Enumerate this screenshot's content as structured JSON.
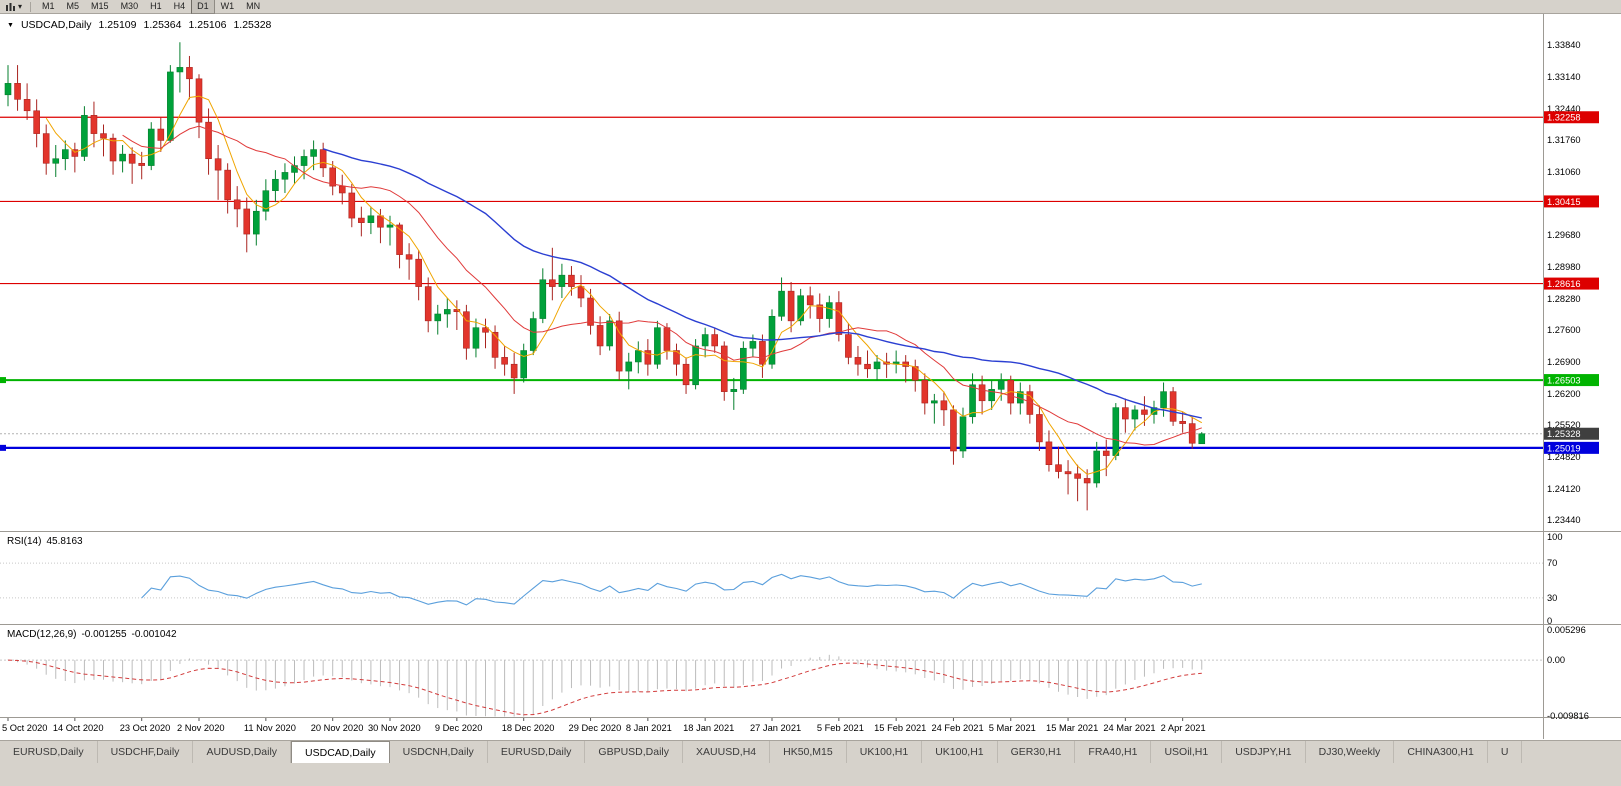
{
  "toolbar": {
    "timeframes": [
      "M1",
      "M5",
      "M15",
      "M30",
      "H1",
      "H4",
      "D1",
      "W1",
      "MN"
    ],
    "active_timeframe": "D1"
  },
  "chart": {
    "title": "USDCAD,Daily",
    "ohlc": {
      "open": "1.25109",
      "high": "1.25364",
      "low": "1.25106",
      "close": "1.25328"
    },
    "price_axis": [
      "1.33840",
      "1.33140",
      "1.32440",
      "1.31760",
      "1.31060",
      "1.30360",
      "1.29680",
      "1.28980",
      "1.28280",
      "1.27600",
      "1.26900",
      "1.26200",
      "1.25520",
      "1.24820",
      "1.24120",
      "1.23440"
    ],
    "levels": [
      {
        "value": 1.32258,
        "label": "1.32258",
        "color": "#dd0000",
        "thickness": 1.2
      },
      {
        "value": 1.30415,
        "label": "1.30415",
        "color": "#dd0000",
        "thickness": 1.2
      },
      {
        "value": 1.28616,
        "label": "1.28616",
        "color": "#dd0000",
        "thickness": 1.2
      },
      {
        "value": 1.26503,
        "label": "1.26503",
        "color": "#00b300",
        "thickness": 2
      },
      {
        "value": 1.25019,
        "label": "1.25019",
        "color": "#0000dd",
        "thickness": 2.2
      }
    ],
    "current_price": {
      "value": 1.25328,
      "label": "1.25328",
      "bg": "#3f3f3f"
    },
    "colors": {
      "bull": "#00a13a",
      "bull_border": "#067f2e",
      "bear": "#e2352c",
      "bear_border": "#a92420",
      "dotted_line": "#b2b2b2"
    }
  },
  "chart_data": {
    "type": "candlestick",
    "symbol": "USDCAD",
    "timeframe": "Daily",
    "x_labels": [
      "5 Oct 2020",
      "14 Oct 2020",
      "23 Oct 2020",
      "2 Nov 2020",
      "11 Nov 2020",
      "20 Nov 2020",
      "30 Nov 2020",
      "9 Dec 2020",
      "18 Dec 2020",
      "29 Dec 2020",
      "8 Jan 2021",
      "18 Jan 2021",
      "27 Jan 2021",
      "5 Feb 2021",
      "15 Feb 2021",
      "24 Feb 2021",
      "5 Mar 2021",
      "15 Mar 2021",
      "24 Mar 2021",
      "2 Apr 2021"
    ],
    "x_label_indices": [
      0,
      7,
      14,
      20,
      27,
      34,
      40,
      47,
      54,
      61,
      67,
      73,
      80,
      87,
      93,
      99,
      105,
      111,
      117,
      123
    ],
    "y_range": [
      1.232,
      1.3452
    ],
    "moving_averages": [
      {
        "period": 5,
        "color": "#f0a500",
        "width": 1
      },
      {
        "period": 13,
        "color": "#e03a3a",
        "width": 1
      },
      {
        "period": 34,
        "color": "#2b3fd2",
        "width": 1.4
      }
    ],
    "ohlc": [
      [
        1.3275,
        1.334,
        1.325,
        1.33
      ],
      [
        1.33,
        1.334,
        1.324,
        1.3265
      ],
      [
        1.3265,
        1.33,
        1.322,
        1.324
      ],
      [
        1.324,
        1.3265,
        1.316,
        1.319
      ],
      [
        1.319,
        1.321,
        1.31,
        1.3125
      ],
      [
        1.3125,
        1.3165,
        1.3095,
        1.3135
      ],
      [
        1.3135,
        1.3175,
        1.311,
        1.3155
      ],
      [
        1.3155,
        1.317,
        1.3105,
        1.314
      ],
      [
        1.314,
        1.325,
        1.313,
        1.323
      ],
      [
        1.323,
        1.326,
        1.316,
        1.319
      ],
      [
        1.319,
        1.321,
        1.314,
        1.318
      ],
      [
        1.318,
        1.319,
        1.31,
        1.313
      ],
      [
        1.313,
        1.3165,
        1.3105,
        1.3145
      ],
      [
        1.3145,
        1.316,
        1.308,
        1.3125
      ],
      [
        1.3125,
        1.315,
        1.309,
        1.312
      ],
      [
        1.312,
        1.3215,
        1.311,
        1.32
      ],
      [
        1.32,
        1.3225,
        1.315,
        1.3175
      ],
      [
        1.3175,
        1.334,
        1.317,
        1.3325
      ],
      [
        1.3325,
        1.339,
        1.328,
        1.3335
      ],
      [
        1.3335,
        1.336,
        1.3265,
        1.331
      ],
      [
        1.331,
        1.332,
        1.318,
        1.3215
      ],
      [
        1.3215,
        1.3245,
        1.31,
        1.3135
      ],
      [
        1.3135,
        1.3165,
        1.3045,
        1.311
      ],
      [
        1.311,
        1.3125,
        1.3015,
        1.3045
      ],
      [
        1.3045,
        1.3075,
        1.2985,
        1.3025
      ],
      [
        1.3025,
        1.305,
        1.293,
        1.297
      ],
      [
        1.297,
        1.3045,
        1.2945,
        1.302
      ],
      [
        1.302,
        1.309,
        1.3,
        1.3065
      ],
      [
        1.3065,
        1.311,
        1.304,
        1.309
      ],
      [
        1.309,
        1.3125,
        1.306,
        1.3105
      ],
      [
        1.3105,
        1.314,
        1.308,
        1.312
      ],
      [
        1.312,
        1.3155,
        1.309,
        1.314
      ],
      [
        1.314,
        1.3175,
        1.311,
        1.3155
      ],
      [
        1.3155,
        1.317,
        1.3095,
        1.3115
      ],
      [
        1.3115,
        1.313,
        1.3055,
        1.3075
      ],
      [
        1.3075,
        1.31,
        1.3035,
        1.306
      ],
      [
        1.306,
        1.308,
        1.2985,
        1.3005
      ],
      [
        1.3005,
        1.303,
        1.2965,
        1.2995
      ],
      [
        1.2995,
        1.303,
        1.297,
        1.301
      ],
      [
        1.301,
        1.3025,
        1.295,
        1.2985
      ],
      [
        1.2985,
        1.301,
        1.2945,
        1.299
      ],
      [
        1.299,
        1.2995,
        1.2895,
        1.2925
      ],
      [
        1.2925,
        1.295,
        1.287,
        1.2915
      ],
      [
        1.2915,
        1.2935,
        1.2825,
        1.2855
      ],
      [
        1.2855,
        1.2875,
        1.2755,
        1.278
      ],
      [
        1.278,
        1.2815,
        1.275,
        1.2795
      ],
      [
        1.2795,
        1.283,
        1.2765,
        1.2805
      ],
      [
        1.2805,
        1.2825,
        1.276,
        1.28
      ],
      [
        1.28,
        1.2815,
        1.2695,
        1.272
      ],
      [
        1.272,
        1.2785,
        1.27,
        1.2765
      ],
      [
        1.2765,
        1.2785,
        1.272,
        1.2755
      ],
      [
        1.2755,
        1.277,
        1.2675,
        1.27
      ],
      [
        1.27,
        1.2725,
        1.266,
        1.2685
      ],
      [
        1.2685,
        1.271,
        1.262,
        1.2655
      ],
      [
        1.2655,
        1.273,
        1.2645,
        1.2715
      ],
      [
        1.2715,
        1.28,
        1.2705,
        1.2785
      ],
      [
        1.2785,
        1.2895,
        1.2775,
        1.287
      ],
      [
        1.287,
        1.294,
        1.2825,
        1.2855
      ],
      [
        1.2855,
        1.2905,
        1.283,
        1.288
      ],
      [
        1.288,
        1.29,
        1.2835,
        1.2855
      ],
      [
        1.2855,
        1.288,
        1.281,
        1.283
      ],
      [
        1.283,
        1.285,
        1.275,
        1.277
      ],
      [
        1.277,
        1.279,
        1.2705,
        1.2725
      ],
      [
        1.2725,
        1.2795,
        1.2715,
        1.278
      ],
      [
        1.278,
        1.28,
        1.265,
        1.267
      ],
      [
        1.267,
        1.271,
        1.263,
        1.269
      ],
      [
        1.269,
        1.2735,
        1.2665,
        1.2715
      ],
      [
        1.2715,
        1.274,
        1.266,
        1.2685
      ],
      [
        1.2685,
        1.278,
        1.2675,
        1.2765
      ],
      [
        1.2765,
        1.2775,
        1.2695,
        1.2715
      ],
      [
        1.2715,
        1.273,
        1.266,
        1.2685
      ],
      [
        1.2685,
        1.27,
        1.262,
        1.264
      ],
      [
        1.264,
        1.274,
        1.263,
        1.2725
      ],
      [
        1.2725,
        1.2765,
        1.27,
        1.275
      ],
      [
        1.275,
        1.2765,
        1.271,
        1.2725
      ],
      [
        1.2725,
        1.2735,
        1.2605,
        1.2625
      ],
      [
        1.2625,
        1.2655,
        1.2585,
        1.263
      ],
      [
        1.263,
        1.2735,
        1.262,
        1.272
      ],
      [
        1.272,
        1.275,
        1.27,
        1.2735
      ],
      [
        1.2735,
        1.275,
        1.2655,
        1.2685
      ],
      [
        1.2685,
        1.2805,
        1.2675,
        1.279
      ],
      [
        1.279,
        1.2875,
        1.278,
        1.2845
      ],
      [
        1.2845,
        1.2865,
        1.2755,
        1.278
      ],
      [
        1.278,
        1.285,
        1.277,
        1.2835
      ],
      [
        1.2835,
        1.2855,
        1.2785,
        1.2815
      ],
      [
        1.2815,
        1.284,
        1.2755,
        1.2785
      ],
      [
        1.2785,
        1.2835,
        1.2765,
        1.282
      ],
      [
        1.282,
        1.2845,
        1.2735,
        1.275
      ],
      [
        1.275,
        1.2775,
        1.2685,
        1.27
      ],
      [
        1.27,
        1.2725,
        1.266,
        1.2685
      ],
      [
        1.2685,
        1.2715,
        1.2655,
        1.2675
      ],
      [
        1.2675,
        1.2705,
        1.265,
        1.269
      ],
      [
        1.269,
        1.271,
        1.2655,
        1.2685
      ],
      [
        1.2685,
        1.2715,
        1.2665,
        1.269
      ],
      [
        1.269,
        1.2705,
        1.2645,
        1.268
      ],
      [
        1.268,
        1.2695,
        1.2625,
        1.265
      ],
      [
        1.265,
        1.2665,
        1.2575,
        1.26
      ],
      [
        1.26,
        1.262,
        1.2555,
        1.2605
      ],
      [
        1.2605,
        1.2625,
        1.255,
        1.2585
      ],
      [
        1.2585,
        1.2595,
        1.2465,
        1.2495
      ],
      [
        1.2495,
        1.259,
        1.248,
        1.257
      ],
      [
        1.257,
        1.2665,
        1.2555,
        1.264
      ],
      [
        1.264,
        1.266,
        1.2575,
        1.2605
      ],
      [
        1.2605,
        1.265,
        1.2585,
        1.263
      ],
      [
        1.263,
        1.2665,
        1.2605,
        1.265
      ],
      [
        1.265,
        1.266,
        1.2575,
        1.26
      ],
      [
        1.26,
        1.2645,
        1.2575,
        1.2625
      ],
      [
        1.2625,
        1.264,
        1.2555,
        1.2575
      ],
      [
        1.2575,
        1.2595,
        1.2495,
        1.2515
      ],
      [
        1.2515,
        1.254,
        1.245,
        1.2465
      ],
      [
        1.2465,
        1.2505,
        1.2435,
        1.245
      ],
      [
        1.245,
        1.2475,
        1.24,
        1.2445
      ],
      [
        1.2445,
        1.2465,
        1.2385,
        1.2435
      ],
      [
        1.2435,
        1.2455,
        1.2365,
        1.2425
      ],
      [
        1.2425,
        1.2515,
        1.2415,
        1.2495
      ],
      [
        1.2495,
        1.252,
        1.244,
        1.2485
      ],
      [
        1.2485,
        1.26,
        1.2475,
        1.259
      ],
      [
        1.259,
        1.261,
        1.2535,
        1.2565
      ],
      [
        1.2565,
        1.2595,
        1.254,
        1.2585
      ],
      [
        1.2585,
        1.2615,
        1.255,
        1.2575
      ],
      [
        1.2575,
        1.2605,
        1.2555,
        1.259
      ],
      [
        1.259,
        1.2645,
        1.257,
        1.2625
      ],
      [
        1.2625,
        1.2635,
        1.255,
        1.256
      ],
      [
        1.256,
        1.258,
        1.2535,
        1.2555
      ],
      [
        1.2555,
        1.257,
        1.25,
        1.2512
      ],
      [
        1.25109,
        1.25364,
        1.25106,
        1.25328
      ]
    ]
  },
  "rsi": {
    "label": "RSI(14)",
    "value": "45.8163",
    "period": 14,
    "color": "#5a9fdc",
    "level_lines": [
      70,
      30
    ],
    "axis_labels": [
      {
        "text": "100",
        "value": 100
      },
      {
        "text": "70",
        "value": 70
      },
      {
        "text": "30",
        "value": 30
      },
      {
        "text": "0",
        "value": 0
      }
    ]
  },
  "macd": {
    "label": "MACD(12,26,9)",
    "main_value": "-0.001255",
    "signal_value": "-0.001042",
    "fast": 12,
    "slow": 26,
    "signal": 9,
    "hist_color": "#bcbcbc",
    "signal_color": "#d23b3b",
    "axis_labels": [
      {
        "text": "0.005296",
        "value": 0.005296
      },
      {
        "text": "0.00",
        "value": 0
      },
      {
        "text": "-0.009816",
        "value": -0.009816
      }
    ]
  },
  "tabs": {
    "active_index": 3,
    "items": [
      "EURUSD,Daily",
      "USDCHF,Daily",
      "AUDUSD,Daily",
      "USDCAD,Daily",
      "USDCNH,Daily",
      "EURUSD,Daily",
      "GBPUSD,Daily",
      "XAUUSD,H4",
      "HK50,M15",
      "UK100,H1",
      "UK100,H1",
      "GER30,H1",
      "FRA40,H1",
      "USOil,H1",
      "USDJPY,H1",
      "DJ30,Weekly",
      "CHINA300,H1",
      "U"
    ]
  }
}
